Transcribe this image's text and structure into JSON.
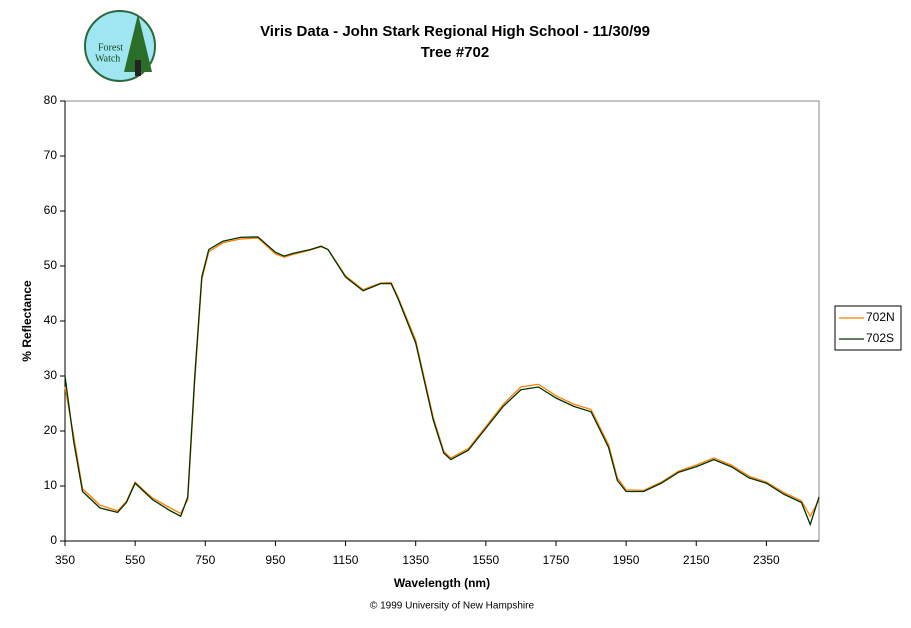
{
  "logo": {
    "line1": "Forest",
    "line2": "Watch"
  },
  "chart_data": {
    "type": "line",
    "title": "Viris Data - John Stark Regional High School - 11/30/99",
    "subtitle": "Tree #702",
    "x_label": "Wavelength (nm)",
    "y_label": "% Reflectance",
    "footer": "© 1999 University of New Hampshire",
    "x": [
      350,
      375,
      400,
      450,
      500,
      525,
      550,
      575,
      600,
      650,
      680,
      700,
      720,
      740,
      760,
      800,
      850,
      900,
      950,
      975,
      1000,
      1050,
      1080,
      1100,
      1150,
      1200,
      1250,
      1280,
      1300,
      1350,
      1400,
      1430,
      1450,
      1500,
      1550,
      1600,
      1650,
      1700,
      1750,
      1800,
      1850,
      1900,
      1925,
      1950,
      2000,
      2050,
      2100,
      2150,
      2200,
      2250,
      2300,
      2350,
      2400,
      2450,
      2475,
      2500
    ],
    "series": [
      {
        "name": "702N",
        "color": "#ff7f00",
        "values": [
          28,
          19,
          9.5,
          6.5,
          5.5,
          7.2,
          10.7,
          9.2,
          7.8,
          6,
          5,
          7.5,
          29,
          47.5,
          52.6,
          54.2,
          54.9,
          55.1,
          52.2,
          51.6,
          52.1,
          52.9,
          53.5,
          53,
          48.2,
          45.7,
          46.9,
          47,
          44.3,
          36.5,
          22.5,
          16.3,
          15.1,
          16.8,
          20.8,
          24.9,
          28,
          28.5,
          26.4,
          24.9,
          23.9,
          17.5,
          11.5,
          9.3,
          9.2,
          10.7,
          12.7,
          13.8,
          15.1,
          13.8,
          11.8,
          10.7,
          8.8,
          7.3,
          4.5,
          7.5
        ]
      },
      {
        "name": "702S",
        "color": "#003300",
        "values": [
          30,
          18,
          9,
          6,
          5.2,
          7,
          10.5,
          9,
          7.5,
          5.5,
          4.5,
          8,
          30,
          48,
          53,
          54.5,
          55.2,
          55.3,
          52.5,
          51.8,
          52.3,
          53,
          53.6,
          53,
          48,
          45.5,
          46.8,
          46.8,
          44,
          36,
          22,
          16,
          14.8,
          16.5,
          20.5,
          24.5,
          27.5,
          28,
          26,
          24.5,
          23.5,
          17,
          11,
          9,
          9,
          10.5,
          12.5,
          13.5,
          14.8,
          13.5,
          11.5,
          10.5,
          8.5,
          7,
          3,
          8
        ]
      }
    ],
    "xlim": [
      350,
      2500
    ],
    "ylim": [
      0,
      80
    ],
    "xticks": [
      350,
      550,
      750,
      950,
      1150,
      1350,
      1550,
      1750,
      1950,
      2150,
      2350
    ],
    "yticks": [
      0,
      10,
      20,
      30,
      40,
      50,
      60,
      70,
      80
    ],
    "legend": "right"
  }
}
